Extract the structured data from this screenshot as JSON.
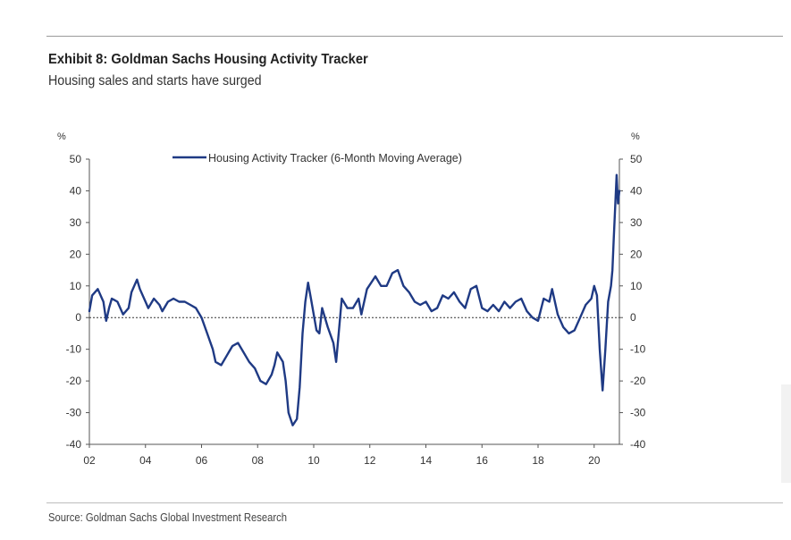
{
  "header": {
    "title": "Exhibit 8: Goldman Sachs Housing Activity Tracker",
    "subtitle": "Housing sales and starts have surged"
  },
  "footer": {
    "source": "Source: Goldman Sachs Global Investment Research"
  },
  "colors": {
    "series": "#1f3a84",
    "axis": "#555555",
    "text": "#333333",
    "zero_line": "#333333"
  },
  "chart_data": {
    "type": "line",
    "title": "Exhibit 8: Goldman Sachs Housing Activity Tracker",
    "subtitle": "Housing sales and starts have surged",
    "ylabel_left": "%",
    "ylabel_right": "%",
    "ylim": [
      -40,
      50
    ],
    "yticks": [
      50,
      40,
      30,
      20,
      10,
      0,
      -10,
      -20,
      -30,
      -40
    ],
    "xlim": [
      2002,
      2020.9
    ],
    "xticks": [
      {
        "value": 2002,
        "label": "02"
      },
      {
        "value": 2004,
        "label": "04"
      },
      {
        "value": 2006,
        "label": "06"
      },
      {
        "value": 2008,
        "label": "08"
      },
      {
        "value": 2010,
        "label": "10"
      },
      {
        "value": 2012,
        "label": "12"
      },
      {
        "value": 2014,
        "label": "14"
      },
      {
        "value": 2016,
        "label": "16"
      },
      {
        "value": 2018,
        "label": "18"
      },
      {
        "value": 2020,
        "label": "20"
      }
    ],
    "reference_line": {
      "y": 0,
      "style": "dashed"
    },
    "legend": {
      "position": "top-center"
    },
    "series": [
      {
        "name": "Housing Activity Tracker (6-Month Moving Average)",
        "x": [
          2002.0,
          2002.1,
          2002.3,
          2002.5,
          2002.6,
          2002.7,
          2002.8,
          2003.0,
          2003.2,
          2003.4,
          2003.5,
          2003.7,
          2003.8,
          2004.0,
          2004.1,
          2004.3,
          2004.5,
          2004.6,
          2004.8,
          2005.0,
          2005.2,
          2005.4,
          2005.6,
          2005.8,
          2006.0,
          2006.2,
          2006.4,
          2006.5,
          2006.7,
          2006.9,
          2007.1,
          2007.3,
          2007.5,
          2007.7,
          2007.9,
          2008.1,
          2008.3,
          2008.5,
          2008.6,
          2008.7,
          2008.9,
          2009.0,
          2009.1,
          2009.25,
          2009.4,
          2009.5,
          2009.6,
          2009.7,
          2009.8,
          2009.9,
          2010.1,
          2010.2,
          2010.3,
          2010.5,
          2010.7,
          2010.8,
          2011.0,
          2011.2,
          2011.4,
          2011.6,
          2011.7,
          2011.9,
          2012.2,
          2012.4,
          2012.6,
          2012.8,
          2013.0,
          2013.2,
          2013.4,
          2013.6,
          2013.8,
          2014.0,
          2014.2,
          2014.4,
          2014.6,
          2014.8,
          2015.0,
          2015.2,
          2015.4,
          2015.6,
          2015.8,
          2016.0,
          2016.2,
          2016.4,
          2016.6,
          2016.8,
          2017.0,
          2017.2,
          2017.4,
          2017.6,
          2017.8,
          2018.0,
          2018.2,
          2018.4,
          2018.5,
          2018.7,
          2018.9,
          2019.1,
          2019.3,
          2019.5,
          2019.7,
          2019.9,
          2020.0,
          2020.1,
          2020.2,
          2020.3,
          2020.4,
          2020.5,
          2020.6,
          2020.65,
          2020.7,
          2020.8,
          2020.85,
          2020.9
        ],
        "values": [
          2,
          7,
          9,
          5,
          -1,
          3,
          6,
          5,
          1,
          3,
          8,
          12,
          9,
          5,
          3,
          6,
          4,
          2,
          5,
          6,
          5,
          5,
          4,
          3,
          0,
          -5,
          -10,
          -14,
          -15,
          -12,
          -9,
          -8,
          -11,
          -14,
          -16,
          -20,
          -21,
          -18,
          -15,
          -11,
          -14,
          -20,
          -30,
          -34,
          -32,
          -22,
          -5,
          5,
          11,
          6,
          -4,
          -5,
          3,
          -3,
          -8,
          -14,
          6,
          3,
          3,
          6,
          1,
          9,
          13,
          10,
          10,
          14,
          15,
          10,
          8,
          5,
          4,
          5,
          2,
          3,
          7,
          6,
          8,
          5,
          3,
          9,
          10,
          3,
          2,
          4,
          2,
          5,
          3,
          5,
          6,
          2,
          0,
          -1,
          6,
          5,
          9,
          1,
          -3,
          -5,
          -4,
          0,
          4,
          6,
          10,
          7,
          -10,
          -23,
          -10,
          5,
          10,
          15,
          25,
          45,
          36,
          40
        ]
      }
    ]
  }
}
